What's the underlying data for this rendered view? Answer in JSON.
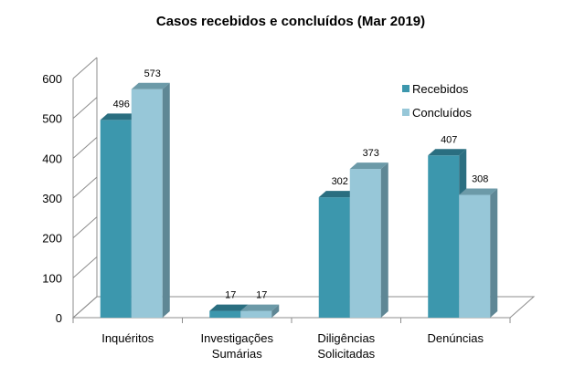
{
  "chart_data": {
    "type": "bar",
    "title": "Casos recebidos e concluídos (Mar 2019)",
    "categories": [
      [
        "Inquéritos"
      ],
      [
        "Investigações",
        "Sumárias"
      ],
      [
        "Diligências",
        "Solicitadas"
      ],
      [
        "Denúncias"
      ]
    ],
    "series": [
      {
        "name": "Recebidos",
        "values": [
          496,
          17,
          302,
          407
        ],
        "color": "#3c97ad",
        "top_color": "#2a6e80",
        "side_color": "#2c6f81"
      },
      {
        "name": "Concluídos",
        "values": [
          573,
          17,
          373,
          308
        ],
        "color": "#97c7d8",
        "top_color": "#6c9aa8",
        "side_color": "#5f8795"
      }
    ],
    "ylim": [
      0,
      600
    ],
    "yticks": [
      "0",
      "100",
      "200",
      "300",
      "400",
      "500",
      "600"
    ],
    "grid": false,
    "legend": "right"
  }
}
